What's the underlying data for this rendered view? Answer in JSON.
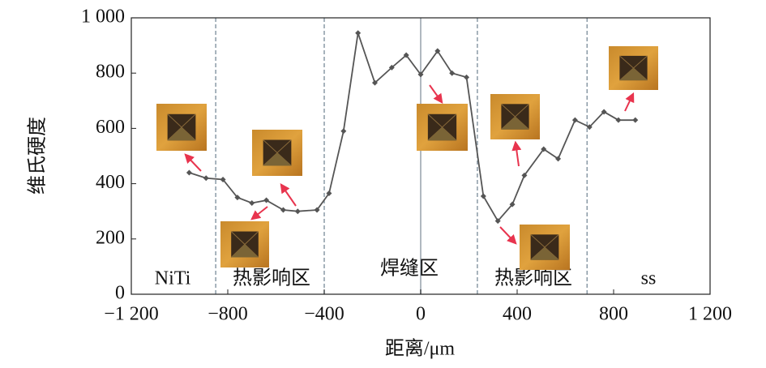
{
  "chart_data": {
    "type": "line",
    "xlabel": "距离/μm",
    "ylabel": "维氏硬度",
    "x": [
      -960,
      -890,
      -820,
      -760,
      -700,
      -640,
      -570,
      -510,
      -430,
      -380,
      -320,
      -260,
      -190,
      -120,
      -60,
      0,
      70,
      130,
      190,
      260,
      320,
      380,
      430,
      510,
      570,
      640,
      700,
      760,
      820,
      890
    ],
    "series": [
      {
        "color": "#555555",
        "values": [
          440,
          420,
          415,
          350,
          330,
          340,
          305,
          300,
          305,
          365,
          590,
          945,
          765,
          820,
          865,
          795,
          880,
          800,
          785,
          355,
          265,
          325,
          430,
          525,
          490,
          630,
          605,
          660,
          630,
          630
        ]
      }
    ],
    "xlim": [
      -1200,
      1200
    ],
    "xticks": [
      {
        "value": -1200,
        "label": "−1 200"
      },
      {
        "value": -800,
        "label": "−800"
      },
      {
        "value": -400,
        "label": "−400"
      },
      0,
      400,
      800,
      {
        "value": 1200,
        "label": "1 200"
      }
    ],
    "ylim": [
      0,
      1000
    ],
    "yticks": [
      0,
      200,
      400,
      600,
      800,
      {
        "value": 1000,
        "label": "1 000"
      }
    ],
    "boundaries": [
      -850,
      -400,
      235,
      690
    ],
    "center_line": 0,
    "regions": [
      "NiTi",
      "热影响区",
      "焊缝区",
      "热影响区",
      "ss"
    ]
  }
}
